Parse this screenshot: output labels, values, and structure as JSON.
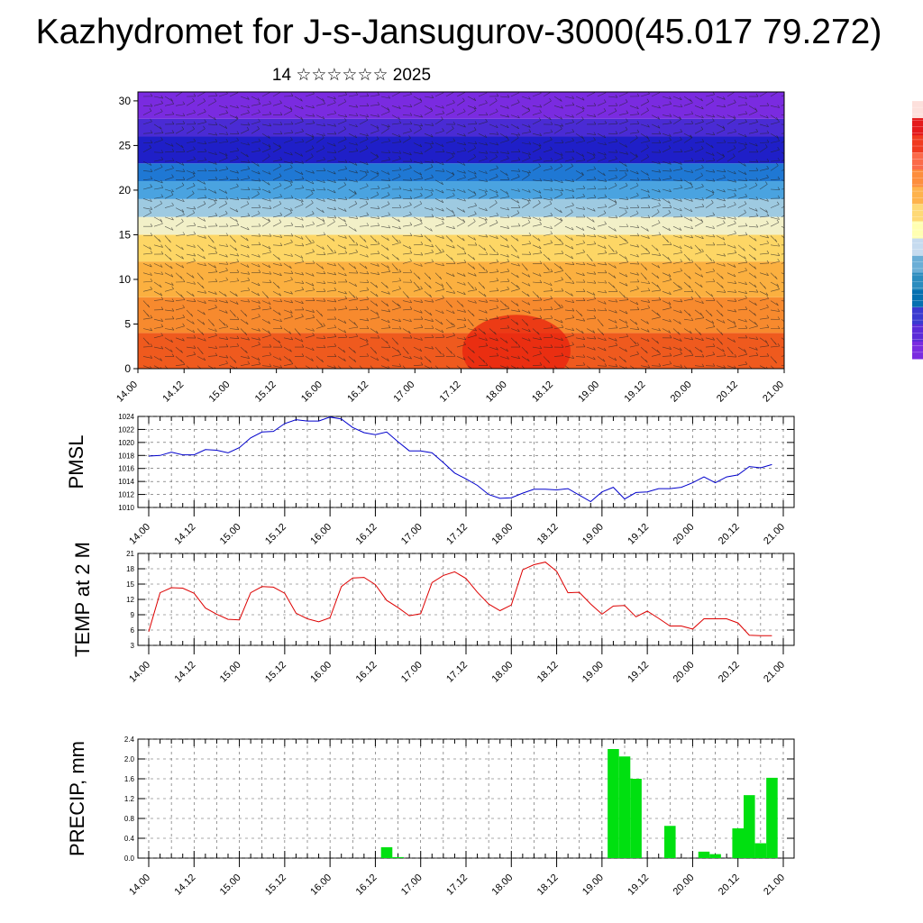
{
  "title": "Kazhydromet for J-s-Jansugurov-3000(45.017 79.272)",
  "subtitle": "14 ☆☆☆☆☆☆ 2025",
  "time_ticks": [
    "14.00",
    "14.12",
    "15.00",
    "15.12",
    "16.00",
    "16.12",
    "17.00",
    "17.12",
    "18.00",
    "18.12",
    "19.00",
    "19.12",
    "20.00",
    "20.12",
    "21.00"
  ],
  "colorbar_colors": [
    "#fde0dc",
    "#e41a1c",
    "#f03b20",
    "#fb6a4a",
    "#fd8d3c",
    "#feb24c",
    "#fed976",
    "#ffffb2",
    "#c6dbef",
    "#6baed6",
    "#2b8cbe",
    "#0570b0",
    "#3a3ad0",
    "#5b2bd8",
    "#7a2be0"
  ],
  "chart_data": [
    {
      "type": "heatmap",
      "name": "wind-temperature cross-section",
      "xlabel": "",
      "ylabel": "",
      "x_ticks": [
        "14.00",
        "14.12",
        "15.00",
        "15.12",
        "16.00",
        "16.12",
        "17.00",
        "17.12",
        "18.00",
        "18.12",
        "19.00",
        "19.12",
        "20.00",
        "20.12",
        "21.00"
      ],
      "y_ticks": [
        0,
        5,
        10,
        15,
        20,
        25,
        30
      ],
      "ylim": [
        0,
        31
      ],
      "bands": [
        {
          "from": 0,
          "to": 4,
          "color": "#ef5a1e"
        },
        {
          "from": 4,
          "to": 8,
          "color": "#f78a2e"
        },
        {
          "from": 8,
          "to": 12,
          "color": "#fbb040"
        },
        {
          "from": 12,
          "to": 15,
          "color": "#fdd665"
        },
        {
          "from": 15,
          "to": 17,
          "color": "#f2f0c8"
        },
        {
          "from": 17,
          "to": 19,
          "color": "#9ecae1"
        },
        {
          "from": 19,
          "to": 21,
          "color": "#4aa3e0"
        },
        {
          "from": 21,
          "to": 23,
          "color": "#1f78d4"
        },
        {
          "from": 23,
          "to": 26,
          "color": "#1f1fc8"
        },
        {
          "from": 26,
          "to": 28,
          "color": "#4a2bd4"
        },
        {
          "from": 28,
          "to": 31,
          "color": "#7a2be0"
        }
      ],
      "hot_spot": {
        "x": 8.2,
        "y": 2,
        "color": "#e8200e"
      }
    },
    {
      "type": "line",
      "ylabel": "PMSL",
      "ylim": [
        1010,
        1024
      ],
      "y_ticks": [
        1010,
        1012,
        1014,
        1016,
        1018,
        1020,
        1022,
        1024
      ],
      "series_color": "#0000cc",
      "x": [
        0,
        0.25,
        0.5,
        0.75,
        1,
        1.25,
        1.5,
        1.75,
        2,
        2.25,
        2.5,
        2.75,
        3,
        3.25,
        3.5,
        3.75,
        4,
        4.25,
        4.5,
        4.75,
        5,
        5.25,
        5.5,
        5.75,
        6,
        6.25,
        6.5,
        6.75,
        7,
        7.25,
        7.5,
        7.75,
        8,
        8.25,
        8.5,
        8.75,
        9,
        9.25,
        9.5,
        9.75,
        10,
        10.25,
        10.5,
        10.75,
        11,
        11.25,
        11.5,
        11.75,
        12,
        12.25,
        12.5,
        12.75,
        13,
        13.25,
        13.5,
        13.75
      ],
      "values": [
        1017.9,
        1018.0,
        1018.5,
        1018.1,
        1018.1,
        1018.9,
        1018.8,
        1018.4,
        1019.2,
        1020.7,
        1021.6,
        1021.7,
        1022.9,
        1023.5,
        1023.3,
        1023.3,
        1023.9,
        1023.6,
        1022.3,
        1021.5,
        1021.2,
        1021.6,
        1020.1,
        1018.7,
        1018.7,
        1018.4,
        1016.9,
        1015.3,
        1014.4,
        1013.4,
        1012.0,
        1011.4,
        1011.5,
        1012.2,
        1012.8,
        1012.8,
        1012.7,
        1012.9,
        1011.9,
        1010.9,
        1012.4,
        1013.1,
        1011.3,
        1012.3,
        1012.4,
        1012.9,
        1012.9,
        1013.1,
        1013.8,
        1014.7,
        1013.8,
        1014.7,
        1015.0,
        1016.3,
        1016.1,
        1016.6
      ]
    },
    {
      "type": "line",
      "ylabel": "TEMP at 2 M",
      "ylim": [
        3,
        21
      ],
      "y_ticks": [
        3,
        6,
        9,
        12,
        15,
        18,
        21
      ],
      "series_color": "#dd0000",
      "x": [
        0,
        0.25,
        0.5,
        0.75,
        1,
        1.25,
        1.5,
        1.75,
        2,
        2.25,
        2.5,
        2.75,
        3,
        3.25,
        3.5,
        3.75,
        4,
        4.25,
        4.5,
        4.75,
        5,
        5.25,
        5.5,
        5.75,
        6,
        6.25,
        6.5,
        6.75,
        7,
        7.25,
        7.5,
        7.75,
        8,
        8.25,
        8.5,
        8.75,
        9,
        9.25,
        9.5,
        9.75,
        10,
        10.25,
        10.5,
        10.75,
        11,
        11.25,
        11.5,
        11.75,
        12,
        12.25,
        12.5,
        12.75,
        13,
        13.25,
        13.5,
        13.75
      ],
      "values": [
        5.7,
        13.3,
        14.3,
        14.2,
        13.2,
        10.3,
        9.1,
        8.1,
        8.0,
        13.3,
        14.5,
        14.4,
        13.2,
        9.3,
        8.2,
        7.6,
        8.4,
        14.5,
        16.2,
        16.3,
        14.9,
        11.8,
        10.4,
        8.8,
        9.2,
        15.3,
        16.7,
        17.4,
        16.1,
        13.4,
        11.1,
        9.8,
        10.9,
        17.8,
        18.8,
        19.3,
        17.5,
        13.3,
        13.4,
        11.1,
        9.1,
        10.7,
        10.8,
        8.6,
        9.7,
        8.3,
        6.8,
        6.8,
        6.2,
        8.2,
        8.2,
        8.2,
        7.4,
        5.0,
        4.9,
        4.9
      ]
    },
    {
      "type": "bar",
      "ylabel": "PRECIP, mm",
      "ylim": [
        0,
        2.4
      ],
      "y_ticks": [
        0.0,
        0.4,
        0.8,
        1.2,
        1.6,
        2.0,
        2.4
      ],
      "bar_color": "#00e010",
      "bars": [
        {
          "x": 5.25,
          "value": 0.22
        },
        {
          "x": 5.5,
          "value": 0.02
        },
        {
          "x": 10.25,
          "value": 2.2
        },
        {
          "x": 10.5,
          "value": 2.05
        },
        {
          "x": 10.75,
          "value": 1.6
        },
        {
          "x": 11.5,
          "value": 0.65
        },
        {
          "x": 12.25,
          "value": 0.13
        },
        {
          "x": 12.5,
          "value": 0.08
        },
        {
          "x": 13.0,
          "value": 0.6
        },
        {
          "x": 13.25,
          "value": 1.27
        },
        {
          "x": 13.5,
          "value": 0.3
        },
        {
          "x": 13.75,
          "value": 1.62
        }
      ]
    }
  ]
}
